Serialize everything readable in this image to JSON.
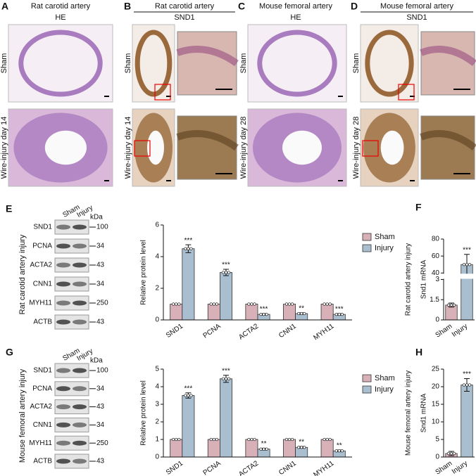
{
  "panels": [
    {
      "letter": "A",
      "title": "Rat carotid artery",
      "subtitle": "HE",
      "rows": [
        "Sham",
        "Wire-injury day 14"
      ]
    },
    {
      "letter": "B",
      "title": "Rat carotid artery",
      "subtitle": "SND1",
      "rows": [
        "Sham",
        "Wire-injury day 14"
      ]
    },
    {
      "letter": "C",
      "title": "Mouse femoral artery",
      "subtitle": "HE",
      "rows": [
        "Sham",
        "Wire-injury day 28"
      ]
    },
    {
      "letter": "D",
      "title": "Mouse femoral artery",
      "subtitle": "SND1",
      "rows": [
        "Sham",
        "Wire-injury day 28"
      ]
    }
  ],
  "blots": [
    {
      "letter": "E",
      "row_label": "Rat carotid artery injury",
      "lanes": [
        "Sham",
        "Injury"
      ],
      "unit": "kDa",
      "rows": [
        {
          "protein": "SND1",
          "marker": "100"
        },
        {
          "protein": "PCNA",
          "marker": "34"
        },
        {
          "protein": "ACTA2",
          "marker": "43"
        },
        {
          "protein": "CNN1",
          "marker": "34"
        },
        {
          "protein": "MYH11",
          "marker": "250"
        },
        {
          "protein": "ACTB",
          "marker": "43"
        }
      ]
    },
    {
      "letter": "G",
      "row_label": "Mouse femoral artery injury",
      "lanes": [
        "Sham",
        "Injury"
      ],
      "unit": "kDa",
      "rows": [
        {
          "protein": "SND1",
          "marker": "100"
        },
        {
          "protein": "PCNA",
          "marker": "34"
        },
        {
          "protein": "ACTA2",
          "marker": "43"
        },
        {
          "protein": "CNN1",
          "marker": "34"
        },
        {
          "protein": "MYH11",
          "marker": "250"
        },
        {
          "protein": "ACTB",
          "marker": "43"
        }
      ]
    }
  ],
  "chart_data": [
    {
      "type": "bar",
      "ylabel": "Relative protein level",
      "categories": [
        "SND1",
        "PCNA",
        "ACTA2",
        "CNN1",
        "MYH11"
      ],
      "series": [
        {
          "name": "Sham",
          "color": "#d8b0b7",
          "values": [
            1,
            1,
            1,
            1,
            1
          ],
          "errors": [
            0,
            0,
            0,
            0,
            0
          ]
        },
        {
          "name": "Injury",
          "color": "#a9bfd0",
          "values": [
            4.5,
            3.0,
            0.35,
            0.4,
            0.35
          ],
          "errors": [
            0.25,
            0.2,
            0.05,
            0.05,
            0.05
          ]
        }
      ],
      "annotations": [
        "***",
        "***",
        "***",
        "**",
        "***"
      ],
      "ylim": [
        0,
        6
      ],
      "yticks": [
        0,
        2,
        4,
        6
      ],
      "legend": "upper right"
    },
    {
      "type": "bar",
      "panel": "F",
      "row_label": "Rat carotid artery  injury",
      "ylabel": "Snd1 mRNA",
      "categories": [
        "Sham",
        "Injury"
      ],
      "values": [
        1.1,
        50
      ],
      "errors": [
        0.15,
        12
      ],
      "colors": [
        "#d8b0b7",
        "#a9bfd0"
      ],
      "annotations": [
        null,
        "***"
      ],
      "ylim": [
        0,
        80
      ],
      "ybreak": [
        3,
        40
      ],
      "yticks": [
        0,
        1.5,
        3,
        40,
        60,
        80
      ]
    },
    {
      "type": "bar",
      "ylabel": "Relative protein level",
      "categories": [
        "SND1",
        "PCNA",
        "ACTA2",
        "CNN1",
        "MYH11"
      ],
      "series": [
        {
          "name": "Sham",
          "color": "#d8b0b7",
          "values": [
            1,
            1,
            1,
            1,
            1
          ],
          "errors": [
            0,
            0,
            0,
            0,
            0
          ]
        },
        {
          "name": "Injury",
          "color": "#a9bfd0",
          "values": [
            3.5,
            4.45,
            0.45,
            0.55,
            0.35
          ],
          "errors": [
            0.15,
            0.2,
            0.05,
            0.05,
            0.05
          ]
        }
      ],
      "annotations": [
        "***",
        "***",
        "**",
        "**",
        "**"
      ],
      "ylim": [
        0,
        5
      ],
      "yticks": [
        0,
        1,
        2,
        3,
        4,
        5
      ],
      "legend": "upper right"
    },
    {
      "type": "bar",
      "panel": "H",
      "row_label": "Mouse femoral artery injury",
      "ylabel": "Snd1 mRNA",
      "categories": [
        "Sham",
        "Injury"
      ],
      "values": [
        1,
        20.5
      ],
      "errors": [
        0.6,
        1.8
      ],
      "colors": [
        "#d8b0b7",
        "#a9bfd0"
      ],
      "annotations": [
        null,
        "***"
      ],
      "ylim": [
        0,
        25
      ],
      "yticks": [
        0,
        5,
        10,
        15,
        20,
        25
      ]
    }
  ]
}
